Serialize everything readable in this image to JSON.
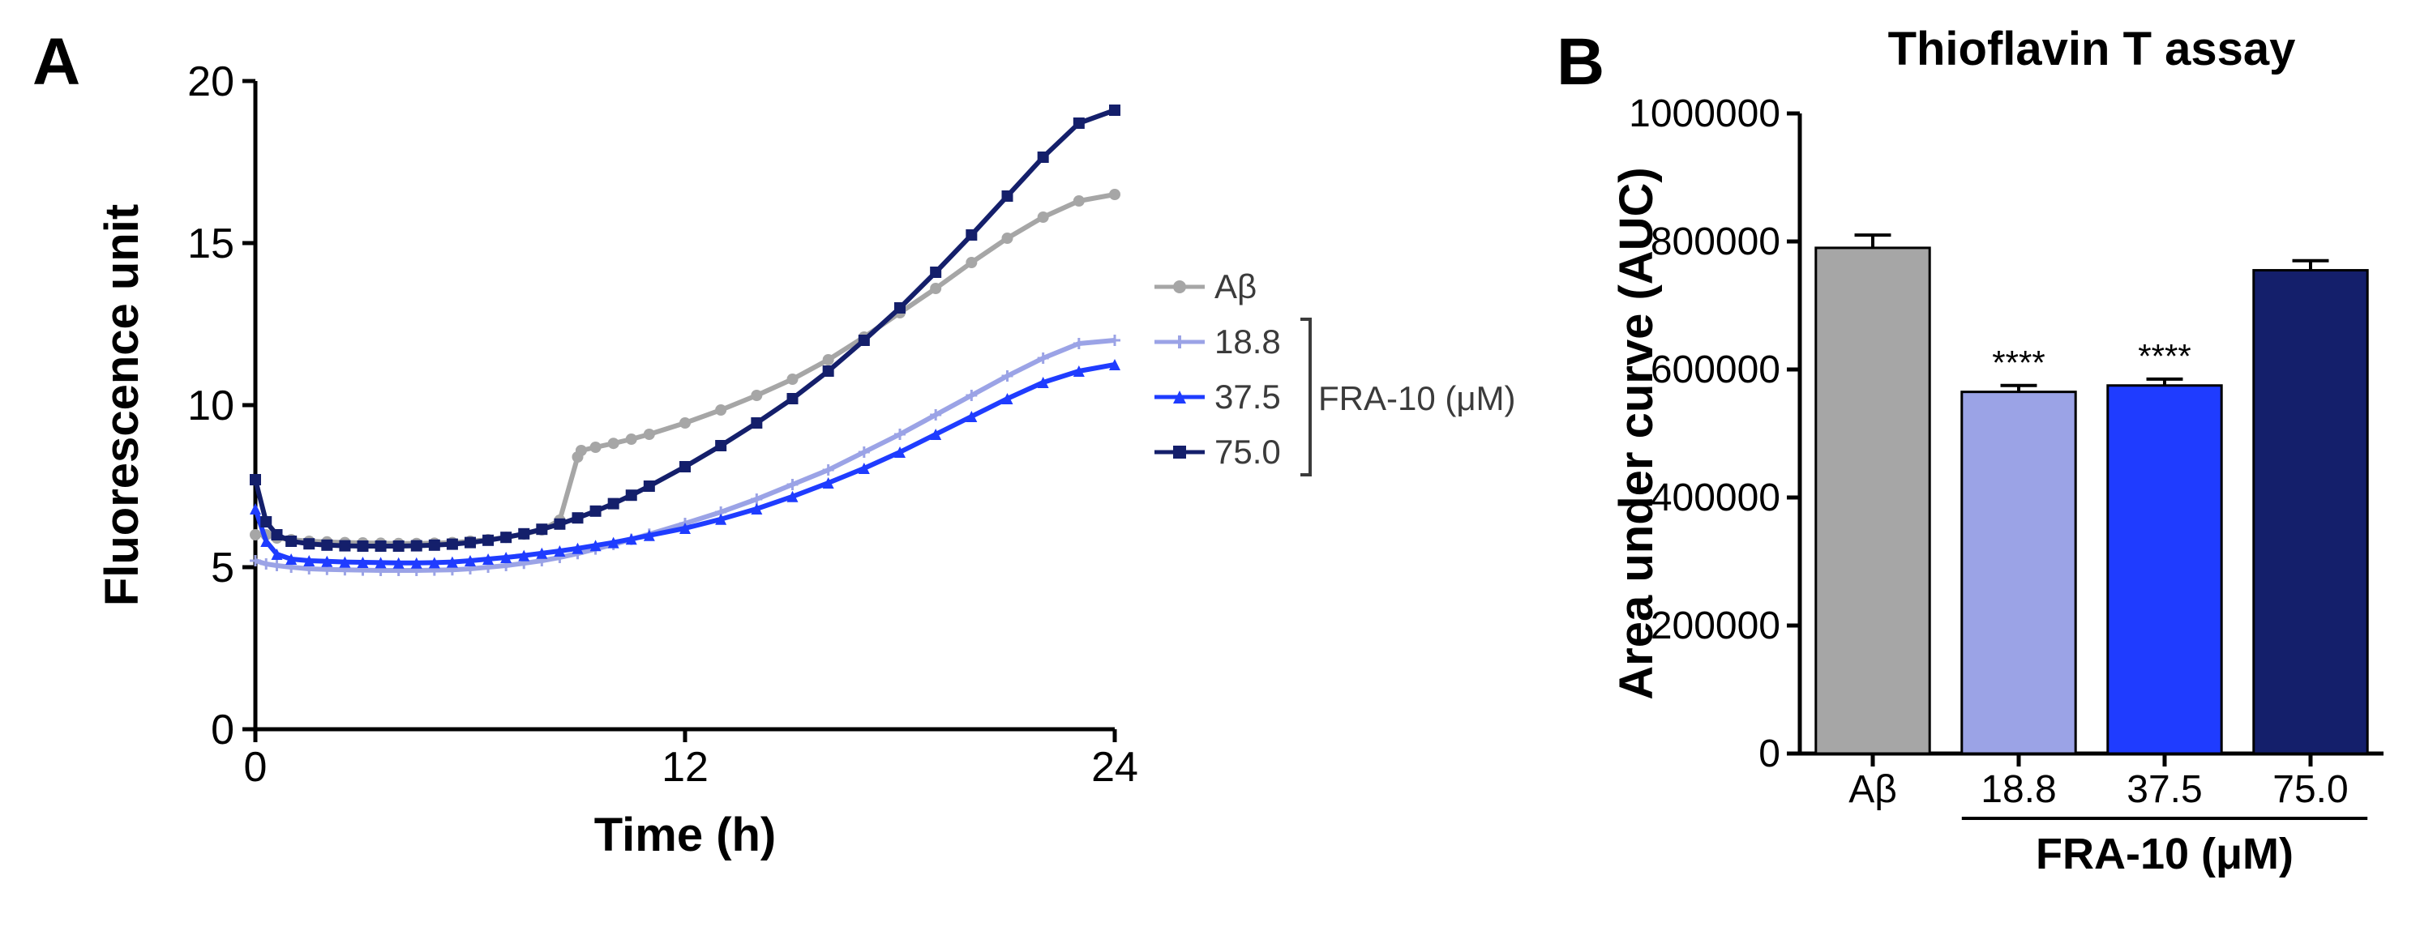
{
  "panelA": {
    "label": "A",
    "label_fontsize": 82,
    "plot": {
      "type": "line",
      "xlabel": "Time (h)",
      "ylabel": "Fluorescence unit",
      "label_fontsize": 58,
      "tick_fontsize": 52,
      "axis_color": "#000000",
      "background_color": "#ffffff",
      "xlim": [
        0,
        24
      ],
      "ylim": [
        0,
        20
      ],
      "xticks": [
        0,
        12,
        24
      ],
      "yticks": [
        0,
        5,
        10,
        15,
        20
      ],
      "line_width": 6,
      "marker_size": 7,
      "series": [
        {
          "name": "Aβ",
          "color": "#a6a6a6",
          "marker": "circle",
          "x": [
            0,
            0.3,
            0.6,
            1,
            1.5,
            2,
            2.5,
            3,
            3.5,
            4,
            4.5,
            5,
            5.5,
            6,
            6.5,
            7,
            7.5,
            8,
            8.5,
            9,
            9.1,
            9.5,
            10,
            10.5,
            11,
            12,
            13,
            14,
            15,
            16,
            17,
            18,
            19,
            20,
            21,
            22,
            23,
            24
          ],
          "y": [
            6.0,
            6.0,
            5.9,
            5.85,
            5.8,
            5.78,
            5.76,
            5.75,
            5.74,
            5.73,
            5.73,
            5.74,
            5.76,
            5.8,
            5.85,
            5.92,
            6.02,
            6.15,
            6.45,
            8.4,
            8.6,
            8.7,
            8.82,
            8.95,
            9.1,
            9.45,
            9.85,
            10.3,
            10.8,
            11.4,
            12.1,
            12.85,
            13.6,
            14.4,
            15.15,
            15.8,
            16.3,
            16.5
          ]
        },
        {
          "name": "18.8",
          "color": "#9ba3e6",
          "marker": "plus",
          "x": [
            0,
            0.3,
            0.6,
            1,
            1.5,
            2,
            2.5,
            3,
            3.5,
            4,
            4.5,
            5,
            5.5,
            6,
            6.5,
            7,
            7.5,
            8,
            8.5,
            9,
            9.5,
            10,
            10.5,
            11,
            12,
            13,
            14,
            15,
            16,
            17,
            18,
            19,
            20,
            21,
            22,
            23,
            24
          ],
          "y": [
            5.2,
            5.1,
            5.05,
            5.0,
            4.95,
            4.93,
            4.92,
            4.91,
            4.9,
            4.9,
            4.9,
            4.91,
            4.92,
            4.95,
            5.0,
            5.05,
            5.12,
            5.2,
            5.3,
            5.42,
            5.56,
            5.7,
            5.86,
            6.02,
            6.35,
            6.7,
            7.1,
            7.55,
            8.0,
            8.55,
            9.1,
            9.7,
            10.3,
            10.9,
            11.45,
            11.9,
            12.0
          ]
        },
        {
          "name": "37.5",
          "color": "#1f3cff",
          "marker": "triangle",
          "x": [
            0,
            0.3,
            0.6,
            1,
            1.5,
            2,
            2.5,
            3,
            3.5,
            4,
            4.5,
            5,
            5.5,
            6,
            6.5,
            7,
            7.5,
            8,
            8.5,
            9,
            9.5,
            10,
            10.5,
            11,
            12,
            13,
            14,
            15,
            16,
            17,
            18,
            19,
            20,
            21,
            22,
            23,
            24
          ],
          "y": [
            6.8,
            5.8,
            5.4,
            5.25,
            5.2,
            5.18,
            5.16,
            5.15,
            5.14,
            5.13,
            5.13,
            5.14,
            5.16,
            5.2,
            5.25,
            5.3,
            5.36,
            5.43,
            5.5,
            5.58,
            5.67,
            5.76,
            5.87,
            5.98,
            6.2,
            6.48,
            6.8,
            7.18,
            7.6,
            8.05,
            8.55,
            9.1,
            9.65,
            10.2,
            10.7,
            11.05,
            11.25
          ]
        },
        {
          "name": "75.0",
          "color": "#141f6b",
          "marker": "square",
          "x": [
            0,
            0.3,
            0.6,
            1,
            1.5,
            2,
            2.5,
            3,
            3.5,
            4,
            4.5,
            5,
            5.5,
            6,
            6.5,
            7,
            7.5,
            8,
            8.5,
            9,
            9.5,
            10,
            10.5,
            11,
            12,
            13,
            14,
            15,
            16,
            17,
            18,
            19,
            20,
            21,
            22,
            23,
            24
          ],
          "y": [
            7.7,
            6.4,
            6.0,
            5.8,
            5.72,
            5.68,
            5.66,
            5.65,
            5.65,
            5.65,
            5.66,
            5.68,
            5.71,
            5.76,
            5.83,
            5.92,
            6.03,
            6.17,
            6.33,
            6.52,
            6.73,
            6.96,
            7.22,
            7.5,
            8.1,
            8.75,
            9.45,
            10.2,
            11.05,
            12.0,
            13.0,
            14.1,
            15.25,
            16.45,
            17.65,
            18.7,
            19.1
          ]
        }
      ],
      "legend": {
        "items": [
          "Aβ",
          "18.8",
          "37.5",
          "75.0"
        ],
        "group_label": "FRA-10 (μM)",
        "bracket_indices": [
          1,
          2,
          3
        ],
        "fontsize": 42,
        "text_color": "#3b3b3b"
      }
    }
  },
  "panelB": {
    "label": "B",
    "label_fontsize": 82,
    "plot": {
      "type": "bar",
      "title": "Thioflavin T assay",
      "title_fontsize": 58,
      "ylabel": "Area under curve (AUC)",
      "label_fontsize": 58,
      "tick_fontsize": 48,
      "axis_color": "#000000",
      "background_color": "#ffffff",
      "ylim": [
        0,
        1000000
      ],
      "ytick_step": 200000,
      "yticks": [
        0,
        200000,
        400000,
        600000,
        800000,
        1000000
      ],
      "categories": [
        "Aβ",
        "18.8",
        "37.5",
        "75.0"
      ],
      "values": [
        790000,
        565000,
        575000,
        755000
      ],
      "errors": [
        20000,
        10000,
        10000,
        15000
      ],
      "bar_colors": [
        "#a6a6a6",
        "#9ba3e6",
        "#1f3cff",
        "#141f6b"
      ],
      "bar_border": "#000000",
      "bar_width": 0.78,
      "error_cap_width": 0.32,
      "annotations": [
        {
          "index": 1,
          "text": "****"
        },
        {
          "index": 2,
          "text": "****"
        }
      ],
      "annotation_fontsize": 42,
      "x_group_label": "FRA-10 (μM)",
      "x_group_indices": [
        1,
        2,
        3
      ]
    }
  }
}
